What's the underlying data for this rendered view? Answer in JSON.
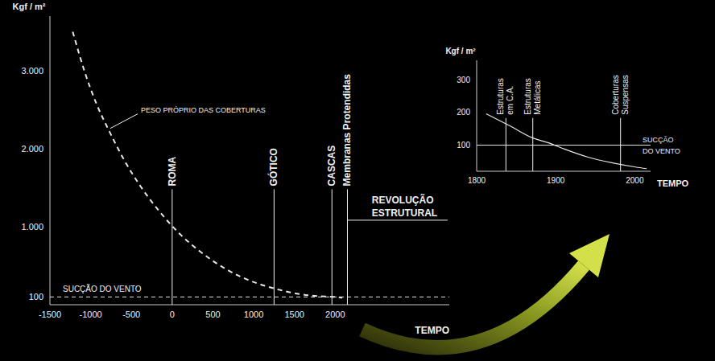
{
  "chart_data": [
    {
      "type": "line",
      "y_label": "Kgf / m²",
      "x_label": "TEMPO",
      "xlim": [
        -1500,
        3400
      ],
      "xticks": [
        -1500,
        -1000,
        -500,
        0,
        500,
        1000,
        1500,
        2000
      ],
      "ylim": [
        0,
        3700
      ],
      "yticks": [
        100,
        {
          "value": 1000,
          "label": "1.000"
        },
        {
          "value": 2000,
          "label": "2.000"
        },
        {
          "value": 3000,
          "label": "3.000"
        }
      ],
      "series": [
        {
          "name": "PESO PRÓPRIO DAS COBERTURAS",
          "color": "#e6e6e6",
          "line_style": "dashed",
          "x": [
            -1220,
            -1075,
            -927,
            -779,
            -581,
            -383,
            -136,
            111,
            358,
            654,
            951,
            1247,
            1544,
            1791,
            1988,
            2087
          ],
          "values": [
            3500,
            2990,
            2570,
            2240,
            1840,
            1510,
            1170,
            890,
            670,
            460,
            310,
            210,
            140,
            110,
            100,
            90
          ]
        }
      ],
      "reference_lines": [
        {
          "label": "SUCÇÃO DO VENTO",
          "y": 100,
          "line_style": "dashed",
          "color": "#e6e6e6"
        }
      ],
      "vertical_lines": [
        {
          "label": "ROMA",
          "x": 0
        },
        {
          "label": "GÓTICO",
          "x": 1250
        },
        {
          "label": "CASCAS",
          "x": 1960
        },
        {
          "label": "Membranas Protendidas",
          "x": 2150
        }
      ],
      "annotations": [
        {
          "text": "REVOLUÇÃO ESTRUTURAL",
          "x": 2450,
          "y": 1300
        }
      ]
    },
    {
      "type": "line",
      "y_label": "Kgf / m²",
      "x_label": "TEMPO",
      "xlim": [
        1800,
        2020
      ],
      "xticks": [
        1800,
        1900,
        2000
      ],
      "ylim": [
        20,
        360
      ],
      "yticks": [
        100,
        200,
        300
      ],
      "series": [
        {
          "color": "#e6e6e6",
          "line_style": "solid",
          "x": [
            1812,
            1842,
            1871,
            1891,
            1911,
            1941,
            1971,
            2001,
            2015
          ],
          "values": [
            196,
            159,
            122,
            107,
            88,
            63,
            46,
            33,
            28
          ]
        }
      ],
      "reference_lines": [
        {
          "label": "SUCÇÃO DO VENTO",
          "y": 100,
          "line_style": "solid",
          "color": "#e6e6e6"
        }
      ],
      "vertical_lines": [
        {
          "label": "Estruturas em C.A.",
          "x": 1837
        },
        {
          "label": "Estruturas Metálicas",
          "x": 1871
        },
        {
          "label": "Coberturas Suspensas",
          "x": 1982
        }
      ]
    }
  ]
}
